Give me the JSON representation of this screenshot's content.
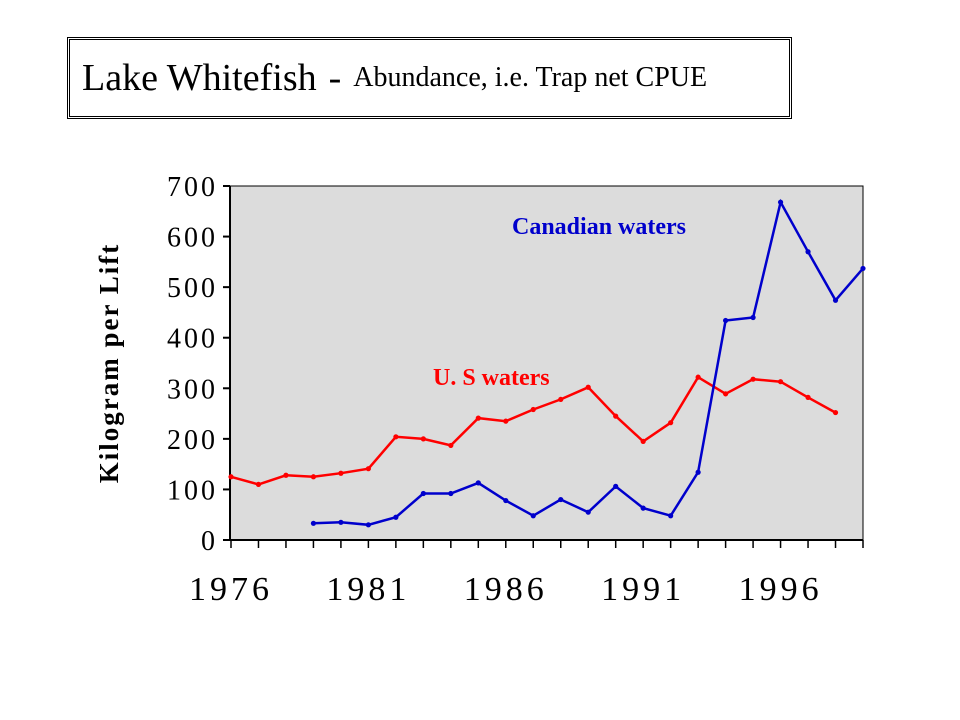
{
  "header": {
    "title": "Lake Whitefish",
    "separator": "-",
    "subtitle": "Abundance, i.e. Trap net CPUE"
  },
  "chart_data": {
    "type": "line",
    "title": "Lake Whitefish - Abundance, i.e. Trap net CPUE",
    "xlabel": "",
    "ylabel": "Kilogram per Lift",
    "xlim": [
      1976,
      1999
    ],
    "ylim": [
      0,
      700
    ],
    "x_ticks": [
      1976,
      1981,
      1986,
      1991,
      1996
    ],
    "y_ticks": [
      0,
      100,
      200,
      300,
      400,
      500,
      600,
      700
    ],
    "grid": false,
    "plot_background": "#dcdcdc",
    "series": [
      {
        "name": "U. S  waters",
        "color": "#ff0000",
        "x": [
          1976,
          1977,
          1978,
          1979,
          1980,
          1981,
          1982,
          1983,
          1984,
          1985,
          1986,
          1987,
          1988,
          1989,
          1990,
          1991,
          1992,
          1993,
          1994,
          1995,
          1996,
          1997,
          1998
        ],
        "values": [
          125,
          110,
          128,
          125,
          132,
          141,
          204,
          200,
          187,
          241,
          235,
          258,
          278,
          302,
          245,
          195,
          232,
          322,
          289,
          318,
          313,
          282,
          252
        ]
      },
      {
        "name": "Canadian waters",
        "color": "#0000cc",
        "x": [
          1979,
          1980,
          1981,
          1982,
          1983,
          1984,
          1985,
          1986,
          1987,
          1988,
          1989,
          1990,
          1991,
          1992,
          1993,
          1994,
          1995,
          1996,
          1997,
          1998,
          1999
        ],
        "values": [
          33,
          35,
          30,
          45,
          92,
          92,
          113,
          78,
          48,
          80,
          55,
          106,
          63,
          48,
          134,
          434,
          440,
          668,
          570,
          474,
          537
        ]
      }
    ]
  }
}
